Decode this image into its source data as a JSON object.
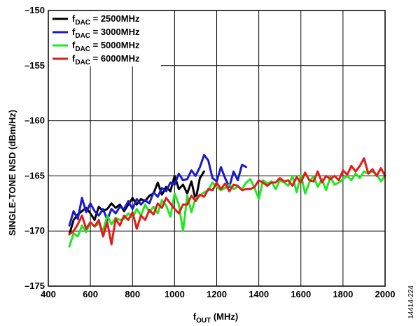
{
  "chart_data": {
    "type": "line",
    "xlabel": {
      "main": "f",
      "sub": "OUT",
      "rest": " (MHz)"
    },
    "ylabel": "SINGLE-TONE NSD (dBm/Hz)",
    "xlim": [
      400,
      2000
    ],
    "ylim": [
      -175,
      -150
    ],
    "xticks": [
      400,
      600,
      800,
      1000,
      1200,
      1400,
      1600,
      1800,
      2000
    ],
    "yticks": [
      -175,
      -170,
      -165,
      -160,
      -155,
      -150
    ],
    "xtick_labels": [
      "400",
      "600",
      "800",
      "1000",
      "1200",
      "1400",
      "1600",
      "1800",
      "2000"
    ],
    "ytick_labels": [
      "–175",
      "–170",
      "–165",
      "–160",
      "–155",
      "–150"
    ],
    "grid": true,
    "legend_position": "top-left",
    "figure_id": "14414-224",
    "series": [
      {
        "name": "f_DAC = 2500MHz",
        "legend": {
          "main": "f",
          "sub": "DAC",
          "rest": " = 2500MHz"
        },
        "color": "#000000",
        "x": [
          500,
          520,
          540,
          560,
          580,
          600,
          620,
          640,
          660,
          680,
          700,
          720,
          740,
          760,
          780,
          800,
          820,
          840,
          860,
          880,
          900,
          920,
          940,
          960,
          980,
          1000,
          1020,
          1040,
          1060,
          1080,
          1100,
          1120,
          1140
        ],
        "y": [
          -170.3,
          -169.0,
          -168.5,
          -168.2,
          -167.9,
          -168.4,
          -169.0,
          -167.8,
          -168.2,
          -168.0,
          -167.5,
          -167.9,
          -167.6,
          -168.2,
          -167.6,
          -167.0,
          -167.6,
          -167.1,
          -167.3,
          -166.8,
          -166.6,
          -165.6,
          -166.7,
          -166.0,
          -166.4,
          -165.0,
          -166.2,
          -165.8,
          -166.6,
          -165.5,
          -167.2,
          -165.2,
          -164.6
        ]
      },
      {
        "name": "f_DAC = 3000MHz",
        "legend": {
          "main": "f",
          "sub": "DAC",
          "rest": " = 3000MHz"
        },
        "color": "#1a1acc",
        "x": [
          500,
          520,
          540,
          560,
          580,
          600,
          620,
          640,
          660,
          680,
          700,
          720,
          740,
          760,
          780,
          800,
          820,
          840,
          860,
          880,
          900,
          920,
          940,
          960,
          980,
          1000,
          1020,
          1040,
          1060,
          1080,
          1100,
          1120,
          1140,
          1160,
          1180,
          1200,
          1220,
          1240,
          1260,
          1280,
          1300,
          1320,
          1340
        ],
        "y": [
          -169.5,
          -168.2,
          -168.9,
          -167.0,
          -168.3,
          -167.5,
          -168.2,
          -168.6,
          -168.0,
          -169.0,
          -168.0,
          -168.4,
          -167.8,
          -168.0,
          -167.3,
          -168.0,
          -167.1,
          -167.6,
          -167.2,
          -167.5,
          -166.5,
          -166.9,
          -166.1,
          -166.4,
          -165.6,
          -165.8,
          -164.8,
          -165.4,
          -165.3,
          -164.5,
          -165.0,
          -164.2,
          -163.1,
          -163.6,
          -165.2,
          -165.5,
          -164.2,
          -165.2,
          -166.0,
          -164.6,
          -165.4,
          -164.0,
          -164.2
        ]
      },
      {
        "name": "f_DAC = 5000MHz",
        "legend": {
          "main": "f",
          "sub": "DAC",
          "rest": " = 5000MHz"
        },
        "color": "#22e622",
        "x": [
          500,
          520,
          540,
          560,
          580,
          600,
          620,
          640,
          660,
          680,
          700,
          720,
          740,
          760,
          780,
          800,
          820,
          840,
          860,
          880,
          900,
          920,
          940,
          960,
          980,
          1000,
          1020,
          1040,
          1060,
          1080,
          1100,
          1120,
          1140,
          1160,
          1180,
          1200,
          1220,
          1240,
          1260,
          1280,
          1300,
          1320,
          1340,
          1360,
          1380,
          1400,
          1420,
          1440,
          1460,
          1480,
          1500,
          1520,
          1540,
          1560,
          1580,
          1600,
          1620,
          1640,
          1660,
          1680,
          1700,
          1720,
          1740,
          1760,
          1780,
          1800,
          1820,
          1840,
          1860,
          1880,
          1900,
          1920,
          1940,
          1960,
          1980,
          2000
        ],
        "y": [
          -171.4,
          -170.2,
          -170.5,
          -169.5,
          -170.1,
          -169.2,
          -169.6,
          -169.3,
          -170.0,
          -168.6,
          -169.4,
          -168.8,
          -169.0,
          -168.9,
          -168.4,
          -168.8,
          -168.0,
          -168.6,
          -167.6,
          -168.3,
          -167.8,
          -168.4,
          -167.2,
          -167.7,
          -168.7,
          -166.6,
          -167.6,
          -170.0,
          -166.8,
          -168.3,
          -167.0,
          -166.8,
          -166.5,
          -166.3,
          -165.6,
          -166.0,
          -166.3,
          -166.1,
          -165.8,
          -166.2,
          -166.0,
          -166.2,
          -165.6,
          -165.3,
          -166.1,
          -167.1,
          -165.4,
          -165.7,
          -165.5,
          -166.2,
          -165.4,
          -165.6,
          -165.9,
          -165.0,
          -166.5,
          -164.9,
          -166.6,
          -165.6,
          -165.0,
          -166.0,
          -165.3,
          -166.3,
          -165.1,
          -165.8,
          -165.6,
          -165.3,
          -165.0,
          -165.4,
          -164.8,
          -165.2,
          -164.6,
          -164.8,
          -164.6,
          -164.9,
          -165.5,
          -165.0
        ]
      },
      {
        "name": "f_DAC = 6000MHz",
        "legend": {
          "main": "f",
          "sub": "DAC",
          "rest": " = 6000MHz"
        },
        "color": "#e61a1a",
        "x": [
          500,
          520,
          540,
          560,
          580,
          600,
          620,
          640,
          660,
          680,
          700,
          720,
          740,
          760,
          780,
          800,
          820,
          840,
          860,
          880,
          900,
          920,
          940,
          960,
          980,
          1000,
          1020,
          1040,
          1060,
          1080,
          1100,
          1120,
          1140,
          1160,
          1180,
          1200,
          1220,
          1240,
          1260,
          1280,
          1300,
          1320,
          1340,
          1360,
          1380,
          1400,
          1420,
          1440,
          1460,
          1480,
          1500,
          1520,
          1540,
          1560,
          1580,
          1600,
          1620,
          1640,
          1660,
          1680,
          1700,
          1720,
          1740,
          1760,
          1780,
          1800,
          1820,
          1840,
          1860,
          1880,
          1900,
          1920,
          1940,
          1960,
          1980,
          2000
        ],
        "y": [
          -170.3,
          -170.0,
          -169.4,
          -168.6,
          -169.8,
          -169.2,
          -169.6,
          -169.0,
          -170.5,
          -169.2,
          -171.2,
          -168.9,
          -169.5,
          -168.6,
          -169.0,
          -168.3,
          -169.8,
          -168.6,
          -169.0,
          -168.1,
          -168.5,
          -167.5,
          -167.9,
          -167.0,
          -167.5,
          -168.0,
          -168.4,
          -167.6,
          -167.6,
          -166.8,
          -167.3,
          -166.7,
          -166.9,
          -166.2,
          -166.3,
          -165.6,
          -166.2,
          -165.7,
          -166.4,
          -165.8,
          -165.9,
          -166.3,
          -166.2,
          -166.2,
          -166.0,
          -165.4,
          -165.6,
          -165.9,
          -165.6,
          -165.6,
          -165.2,
          -165.5,
          -165.4,
          -165.9,
          -165.1,
          -165.6,
          -164.7,
          -165.4,
          -165.5,
          -164.6,
          -165.6,
          -165.0,
          -165.3,
          -165.0,
          -165.4,
          -164.5,
          -164.9,
          -164.1,
          -164.6,
          -164.1,
          -163.4,
          -164.8,
          -164.4,
          -165.0,
          -164.3,
          -165.0
        ]
      }
    ]
  }
}
